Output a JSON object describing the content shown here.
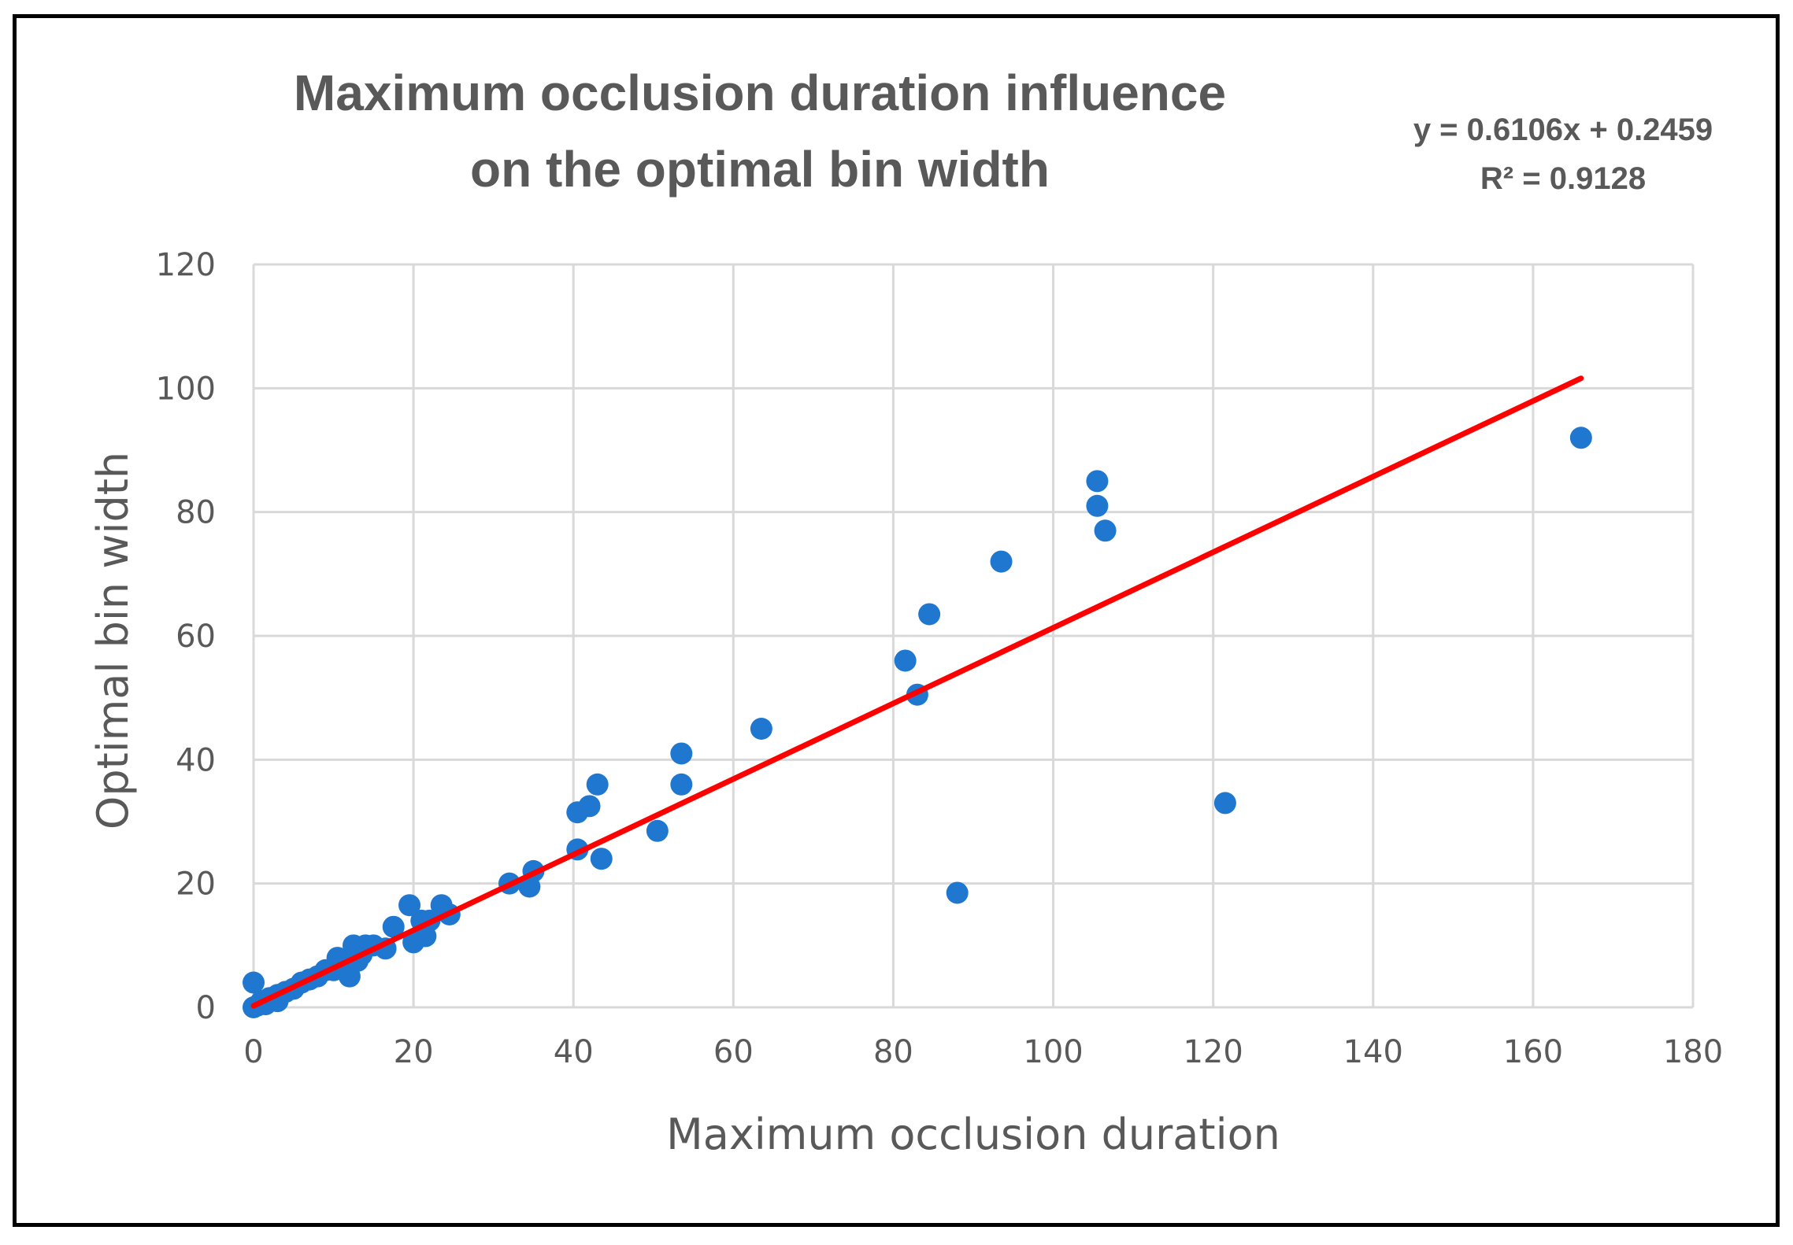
{
  "chart_data": {
    "type": "scatter",
    "title_lines": [
      "Maximum occlusion duration influence",
      "on the optimal bin width"
    ],
    "xlabel": "Maximum occlusion duration",
    "ylabel": "Optimal bin width",
    "xlim": [
      0,
      180
    ],
    "ylim": [
      0,
      120
    ],
    "xticks": [
      0,
      20,
      40,
      60,
      80,
      100,
      120,
      140,
      160,
      180
    ],
    "yticks": [
      0,
      20,
      40,
      60,
      80,
      100,
      120
    ],
    "grid": true,
    "legend": "none",
    "series": [
      {
        "name": "Optimal bin width",
        "color": "#1f77d0",
        "points": [
          [
            0,
            0
          ],
          [
            0,
            4
          ],
          [
            0.5,
            0.3
          ],
          [
            1,
            1
          ],
          [
            1.5,
            0.5
          ],
          [
            2,
            1.5
          ],
          [
            3,
            2
          ],
          [
            3,
            1
          ],
          [
            4,
            2.5
          ],
          [
            5,
            3
          ],
          [
            6,
            4
          ],
          [
            7,
            4.5
          ],
          [
            8,
            5
          ],
          [
            9,
            6
          ],
          [
            10,
            6
          ],
          [
            10.5,
            8
          ],
          [
            11,
            7
          ],
          [
            12,
            5
          ],
          [
            12.5,
            10
          ],
          [
            13,
            7.5
          ],
          [
            13.5,
            8.5
          ],
          [
            14,
            10
          ],
          [
            15,
            10
          ],
          [
            16.5,
            9.5
          ],
          [
            17.5,
            13
          ],
          [
            19.5,
            16.5
          ],
          [
            20,
            10.5
          ],
          [
            21,
            14
          ],
          [
            21.5,
            11.5
          ],
          [
            22,
            14
          ],
          [
            23.5,
            16.5
          ],
          [
            24.5,
            15
          ],
          [
            32,
            20
          ],
          [
            34.5,
            19.5
          ],
          [
            35,
            22
          ],
          [
            40.5,
            25.5
          ],
          [
            40.5,
            31.5
          ],
          [
            42,
            32.5
          ],
          [
            43,
            36
          ],
          [
            43.5,
            24
          ],
          [
            50.5,
            28.5
          ],
          [
            53.5,
            41
          ],
          [
            53.5,
            36
          ],
          [
            63.5,
            45
          ],
          [
            81.5,
            56
          ],
          [
            83,
            50.5
          ],
          [
            84.5,
            63.5
          ],
          [
            88,
            18.5
          ],
          [
            93.5,
            72
          ],
          [
            105.5,
            85
          ],
          [
            105.5,
            81
          ],
          [
            106.5,
            77
          ],
          [
            121.5,
            33
          ],
          [
            166,
            92
          ]
        ]
      }
    ],
    "trendline": {
      "type": "linear",
      "slope": 0.6106,
      "intercept": 0.2459,
      "x_range": [
        0,
        166
      ],
      "color": "#ff0000",
      "equation": "y = 0.6106x + 0.2459",
      "r_squared": "R² = 0.9128"
    }
  }
}
